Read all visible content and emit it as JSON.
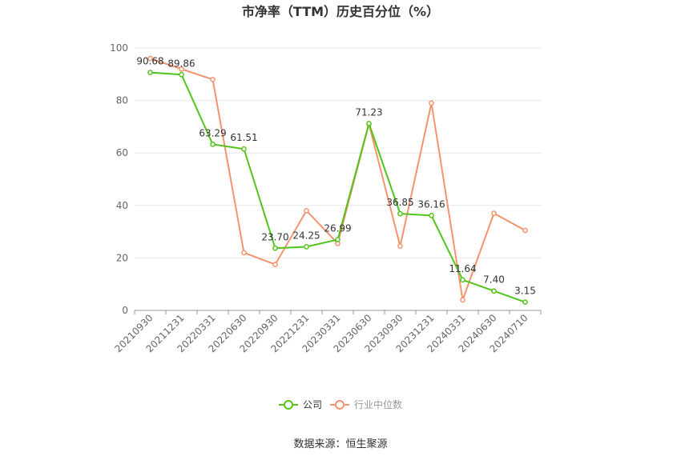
{
  "chart_data": {
    "type": "line",
    "title": "市净率（TTM）历史百分位（%）",
    "categories": [
      "20210930",
      "20211231",
      "20220331",
      "20220630",
      "20220930",
      "20221231",
      "20230331",
      "20230630",
      "20230930",
      "20231231",
      "20240331",
      "20240630",
      "20240710"
    ],
    "series": [
      {
        "name": "公司",
        "color": "#52c41a",
        "values": [
          90.68,
          89.86,
          63.29,
          61.51,
          23.7,
          24.25,
          26.99,
          71.23,
          36.85,
          36.16,
          11.64,
          7.4,
          3.15
        ],
        "labels": [
          "90.68",
          "89.86",
          "63.29",
          "61.51",
          "23.70",
          "24.25",
          "26.99",
          "71.23",
          "36.85",
          "36.16",
          "11.64",
          "7.40",
          "3.15"
        ]
      },
      {
        "name": "行业中位数",
        "color": "#f5936e",
        "values": [
          96,
          92,
          88,
          22,
          17.5,
          38,
          25.5,
          71,
          24.5,
          79,
          4,
          37,
          30.5
        ]
      }
    ],
    "y_ticks": [
      "0",
      "20",
      "40",
      "60",
      "80",
      "100"
    ],
    "ylim": [
      0,
      100
    ],
    "grid": true,
    "legend": "bottom-center"
  },
  "footer": {
    "source": "数据来源：恒生聚源"
  }
}
